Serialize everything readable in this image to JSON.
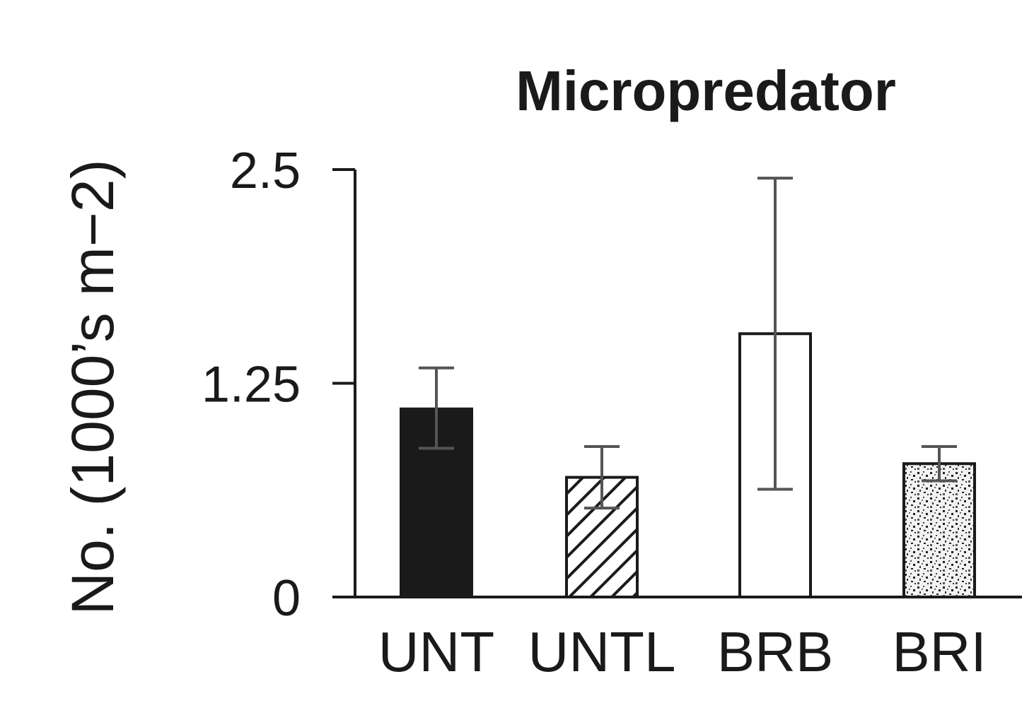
{
  "chart_data": {
    "type": "bar",
    "title": "Micropredator",
    "ylabel": "No. (1000’s m−2)",
    "xlabel": "",
    "categories": [
      "UNT",
      "UNTL",
      "BRB",
      "BRI"
    ],
    "values": [
      1.1,
      0.7,
      1.54,
      0.78
    ],
    "error_upper": [
      1.34,
      0.88,
      2.45,
      0.88
    ],
    "error_lower": [
      0.87,
      0.52,
      0.63,
      0.68
    ],
    "fills": [
      "solid",
      "hatch",
      "empty",
      "speckle"
    ],
    "ylim": [
      0,
      3.0
    ],
    "yticks": [
      0,
      1.25,
      2.5
    ],
    "ytick_labels": [
      "0",
      "1.25",
      "2.5"
    ],
    "grid": false,
    "legend": "none"
  },
  "colors": {
    "ink": "#1a1a1a",
    "errorbar": "#555555",
    "background": "#ffffff"
  }
}
